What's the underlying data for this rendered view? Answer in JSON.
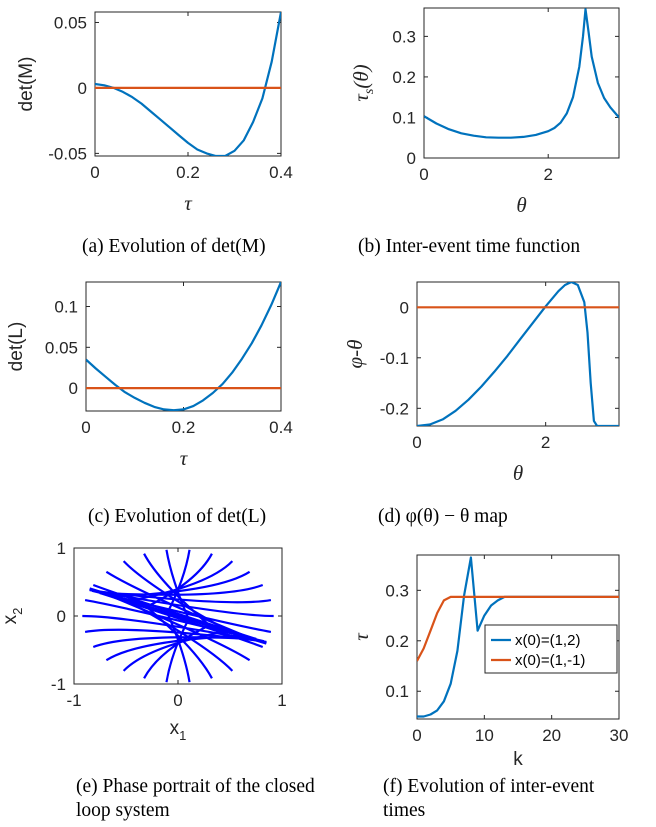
{
  "panels": [
    {
      "id": "a",
      "caption": "(a) Evolution of det(M)",
      "chart_data": {
        "type": "line",
        "xlabel": "τ",
        "ylabel": "det(M)",
        "xlim": [
          0,
          0.4
        ],
        "ylim": [
          -0.052,
          0.058
        ],
        "xticks": [
          0,
          0.2,
          0.4
        ],
        "xticklabels": [
          "0",
          "0.2",
          "0.4"
        ],
        "yticks": [
          -0.05,
          0,
          0.05
        ],
        "yticklabels": [
          "-0.05",
          "0",
          "0.05"
        ],
        "series": [
          {
            "color": "#0072BD",
            "x": [
              0,
              0.02,
              0.04,
              0.06,
              0.08,
              0.1,
              0.12,
              0.14,
              0.16,
              0.18,
              0.2,
              0.22,
              0.24,
              0.26,
              0.28,
              0.3,
              0.32,
              0.34,
              0.36,
              0.38,
              0.4
            ],
            "y": [
              0.003,
              0.002,
              0.0,
              -0.003,
              -0.007,
              -0.012,
              -0.018,
              -0.024,
              -0.03,
              -0.036,
              -0.042,
              -0.047,
              -0.05,
              -0.052,
              -0.052,
              -0.048,
              -0.04,
              -0.026,
              -0.008,
              0.02,
              0.058
            ]
          },
          {
            "color": "#D95319",
            "x": [
              0,
              0.4
            ],
            "y": [
              0,
              0
            ]
          }
        ]
      }
    },
    {
      "id": "b",
      "caption": "(b) Inter-event time function",
      "chart_data": {
        "type": "line",
        "xlabel": "θ",
        "ylabel": "τs(θ)",
        "xlim": [
          0,
          3.14
        ],
        "ylim": [
          0,
          0.37
        ],
        "xticks": [
          0,
          2
        ],
        "xticklabels": [
          "0",
          "2"
        ],
        "yticks": [
          0,
          0.1,
          0.2,
          0.3
        ],
        "yticklabels": [
          "0",
          "0.1",
          "0.2",
          "0.3"
        ],
        "series": [
          {
            "color": "#0072BD",
            "x": [
              0,
              0.2,
              0.4,
              0.6,
              0.8,
              1.0,
              1.2,
              1.4,
              1.6,
              1.8,
              2.0,
              2.1,
              2.2,
              2.3,
              2.4,
              2.5,
              2.56,
              2.6,
              2.65,
              2.7,
              2.8,
              2.9,
              3.0,
              3.14
            ],
            "y": [
              0.103,
              0.085,
              0.071,
              0.061,
              0.055,
              0.051,
              0.05,
              0.05,
              0.052,
              0.057,
              0.066,
              0.074,
              0.087,
              0.11,
              0.15,
              0.225,
              0.3,
              0.367,
              0.31,
              0.25,
              0.185,
              0.148,
              0.125,
              0.1
            ]
          }
        ]
      }
    },
    {
      "id": "c",
      "caption": "(c) Evolution of det(L)",
      "chart_data": {
        "type": "line",
        "xlabel": "τ",
        "ylabel": "det(L)",
        "xlim": [
          0,
          0.4
        ],
        "ylim": [
          -0.028,
          0.13
        ],
        "xticks": [
          0,
          0.2,
          0.4
        ],
        "xticklabels": [
          "0",
          "0.2",
          "0.4"
        ],
        "yticks": [
          0,
          0.05,
          0.1
        ],
        "yticklabels": [
          "0",
          "0.05",
          "0.1"
        ],
        "series": [
          {
            "color": "#0072BD",
            "x": [
              0,
              0.02,
              0.04,
              0.06,
              0.08,
              0.1,
              0.12,
              0.14,
              0.16,
              0.18,
              0.2,
              0.22,
              0.24,
              0.26,
              0.28,
              0.3,
              0.32,
              0.34,
              0.36,
              0.38,
              0.4
            ],
            "y": [
              0.035,
              0.024,
              0.014,
              0.004,
              -0.005,
              -0.012,
              -0.018,
              -0.023,
              -0.026,
              -0.027,
              -0.026,
              -0.022,
              -0.015,
              -0.006,
              0.005,
              0.019,
              0.036,
              0.055,
              0.077,
              0.102,
              0.13
            ]
          },
          {
            "color": "#D95319",
            "x": [
              0,
              0.4
            ],
            "y": [
              0,
              0
            ]
          }
        ]
      }
    },
    {
      "id": "d",
      "caption": "(d) φ(θ) − θ map",
      "chart_data": {
        "type": "line",
        "xlabel": "θ",
        "ylabel": "φ-θ",
        "xlim": [
          0,
          3.14
        ],
        "ylim": [
          -0.235,
          0.05
        ],
        "xticks": [
          0,
          2
        ],
        "xticklabels": [
          "0",
          "2"
        ],
        "yticks": [
          -0.2,
          -0.1,
          0
        ],
        "yticklabels": [
          "-0.2",
          "-0.1",
          "0"
        ],
        "series": [
          {
            "color": "#0072BD",
            "x": [
              0,
              0.2,
              0.4,
              0.6,
              0.8,
              1.0,
              1.2,
              1.4,
              1.6,
              1.8,
              2.0,
              2.2,
              2.3,
              2.4,
              2.5,
              2.6,
              2.65,
              2.7,
              2.75,
              2.8,
              3.14
            ],
            "y": [
              -0.235,
              -0.232,
              -0.222,
              -0.205,
              -0.183,
              -0.157,
              -0.128,
              -0.097,
              -0.064,
              -0.031,
              0.002,
              0.032,
              0.044,
              0.05,
              0.044,
              0.01,
              -0.05,
              -0.15,
              -0.225,
              -0.235,
              -0.235
            ]
          },
          {
            "color": "#D95319",
            "x": [
              0,
              3.14
            ],
            "y": [
              0,
              0
            ]
          }
        ]
      }
    },
    {
      "id": "e",
      "caption": "(e) Phase portrait of the closed loop system",
      "chart_data": {
        "type": "line",
        "xlabel": "x1",
        "ylabel": "x2",
        "xlim": [
          -1,
          1
        ],
        "ylim": [
          -1,
          1
        ],
        "xticks": [
          -1,
          0,
          1
        ],
        "xticklabels": [
          "-1",
          "0",
          "1"
        ],
        "yticks": [
          -1,
          0,
          1
        ],
        "yticklabels": [
          "-1",
          "0",
          "1"
        ],
        "series": [
          {
            "color": "#0000FF",
            "description_visible": "family of trajectories converging to the line x2 = -0.45 x1"
          }
        ]
      }
    },
    {
      "id": "f",
      "caption": "(f) Evolution of inter-event times",
      "chart_data": {
        "type": "line",
        "xlabel": "k",
        "ylabel": "τ",
        "xlim": [
          0,
          30
        ],
        "ylim": [
          0.045,
          0.37
        ],
        "xticks": [
          0,
          10,
          20,
          30
        ],
        "xticklabels": [
          "0",
          "10",
          "20",
          "30"
        ],
        "yticks": [
          0.1,
          0.2,
          0.3
        ],
        "yticklabels": [
          "0.1",
          "0.2",
          "0.3"
        ],
        "legend": "inside-right",
        "series": [
          {
            "name": "x(0)=(1,2)",
            "color": "#0072BD",
            "x": [
              0,
              1,
              2,
              3,
              4,
              5,
              6,
              7,
              8,
              9,
              10,
              11,
              12,
              13,
              30
            ],
            "y": [
              0.05,
              0.05,
              0.054,
              0.062,
              0.08,
              0.115,
              0.18,
              0.29,
              0.365,
              0.22,
              0.25,
              0.27,
              0.28,
              0.287,
              0.287
            ]
          },
          {
            "name": "x(0)=(1,-1)",
            "color": "#D95319",
            "x": [
              0,
              1,
              2,
              3,
              4,
              5,
              30
            ],
            "y": [
              0.16,
              0.185,
              0.22,
              0.255,
              0.28,
              0.287,
              0.287
            ]
          }
        ]
      }
    }
  ]
}
